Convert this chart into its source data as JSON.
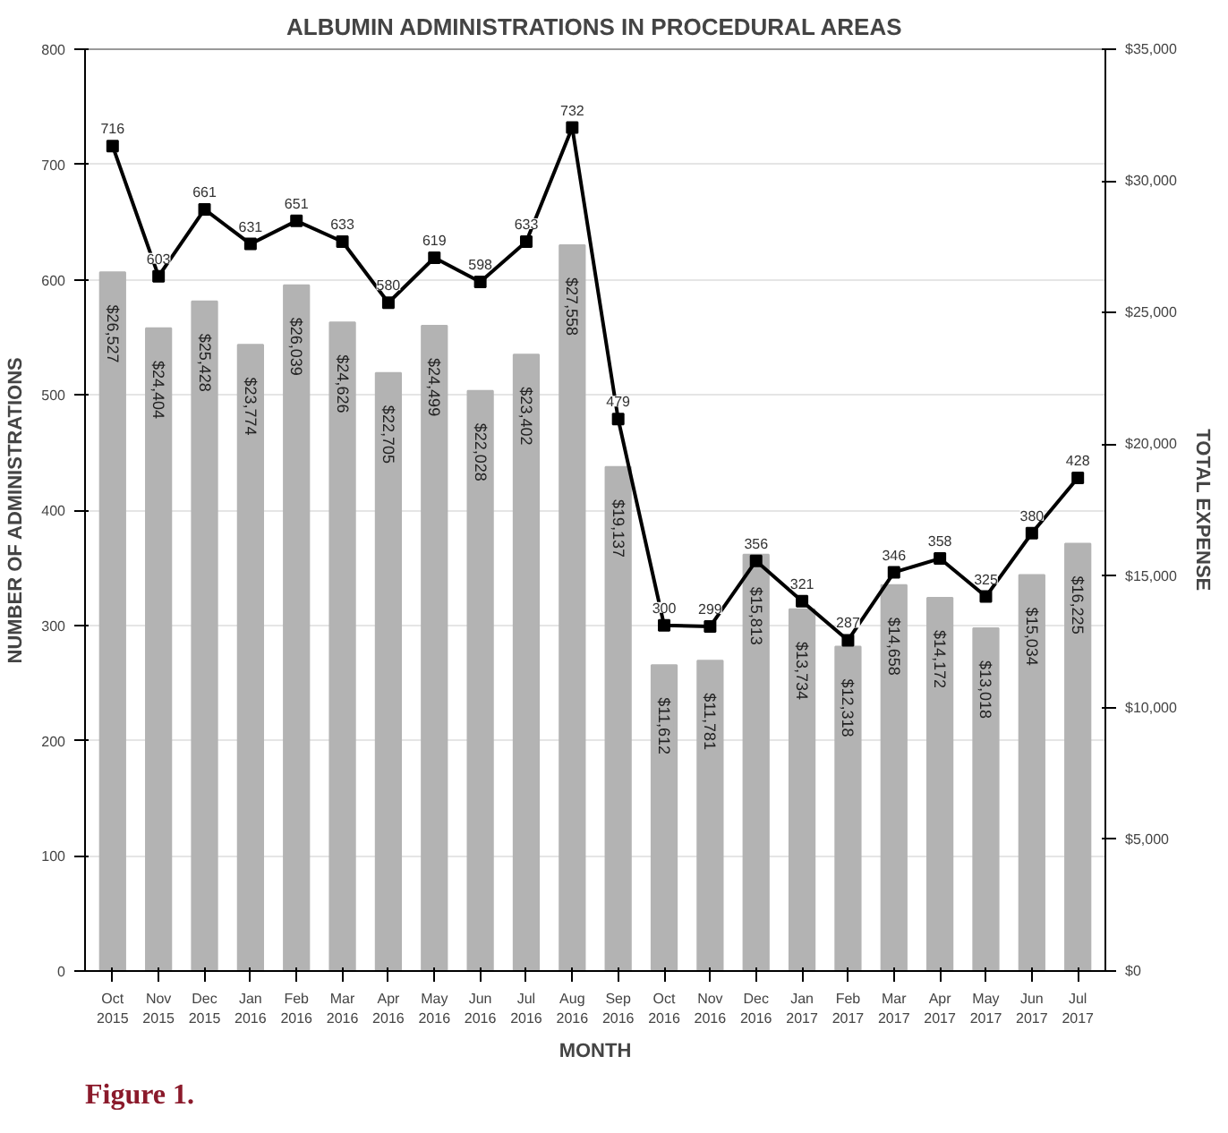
{
  "chart_data": {
    "type": "bar",
    "title": "ALBUMIN ADMINISTRATIONS IN PROCEDURAL AREAS",
    "xlabel": "MONTH",
    "ylabel": "NUMBER OF ADMINISTRATIONS",
    "y2label": "TOTAL EXPENSE",
    "categories": [
      "Oct 2015",
      "Nov 2015",
      "Dec 2015",
      "Jan 2016",
      "Feb 2016",
      "Mar 2016",
      "Apr 2016",
      "May 2016",
      "Jun 2016",
      "Jul 2016",
      "Aug 2016",
      "Sep 2016",
      "Oct 2016",
      "Nov 2016",
      "Dec 2016",
      "Jan 2017",
      "Feb 2017",
      "Mar 2017",
      "Apr 2017",
      "May 2017",
      "Jun 2017",
      "Jul 2017"
    ],
    "series": [
      {
        "axis": "y2",
        "color": "#b3b3b3",
        "values": [
          26527,
          24404,
          25428,
          23774,
          26039,
          24626,
          22705,
          24499,
          22028,
          23402,
          27558,
          19137,
          11612,
          11781,
          15813,
          13734,
          12318,
          14658,
          14172,
          13018,
          15034,
          16225
        ],
        "value_labels": [
          "$26,527",
          "$24,404",
          "$25,428",
          "$23,774",
          "$26,039",
          "$24,626",
          "$22,705",
          "$24,499",
          "$22,028",
          "$23,402",
          "$27,558",
          "$19,137",
          "$11,612",
          "$11,781",
          "$15,813",
          "$13,734",
          "$12,318",
          "$14,658",
          "$14,172",
          "$13,018",
          "$15,034",
          "$16,225"
        ]
      },
      {
        "type": "line",
        "color": "#000000",
        "marker": "square",
        "values": [
          716,
          603,
          661,
          631,
          651,
          633,
          580,
          619,
          598,
          633,
          732,
          479,
          300,
          299,
          356,
          321,
          287,
          346,
          358,
          325,
          380,
          428
        ],
        "value_labels": [
          "716",
          "603",
          "661",
          "631",
          "651",
          "633",
          "580",
          "619",
          "598",
          "633",
          "732",
          "479",
          "300",
          "299",
          "356",
          "321",
          "287",
          "346",
          "358",
          "325",
          "380",
          "428"
        ]
      }
    ],
    "ylim": [
      0,
      800
    ],
    "yticks": [
      0,
      100,
      200,
      300,
      400,
      500,
      600,
      700,
      800
    ],
    "y2lim": [
      0,
      35000
    ],
    "y2ticks": [
      {
        "value": 0,
        "label": "$0"
      },
      {
        "value": 5000,
        "label": "$5,000"
      },
      {
        "value": 10000,
        "label": "$10,000"
      },
      {
        "value": 15000,
        "label": "$15,000"
      },
      {
        "value": 20000,
        "label": "$20,000"
      },
      {
        "value": 25000,
        "label": "$25,000"
      },
      {
        "value": 30000,
        "label": "$30,000"
      },
      {
        "value": 35000,
        "label": "$35,000"
      }
    ],
    "grid": "y",
    "annotations": [
      "Figure 1."
    ]
  }
}
